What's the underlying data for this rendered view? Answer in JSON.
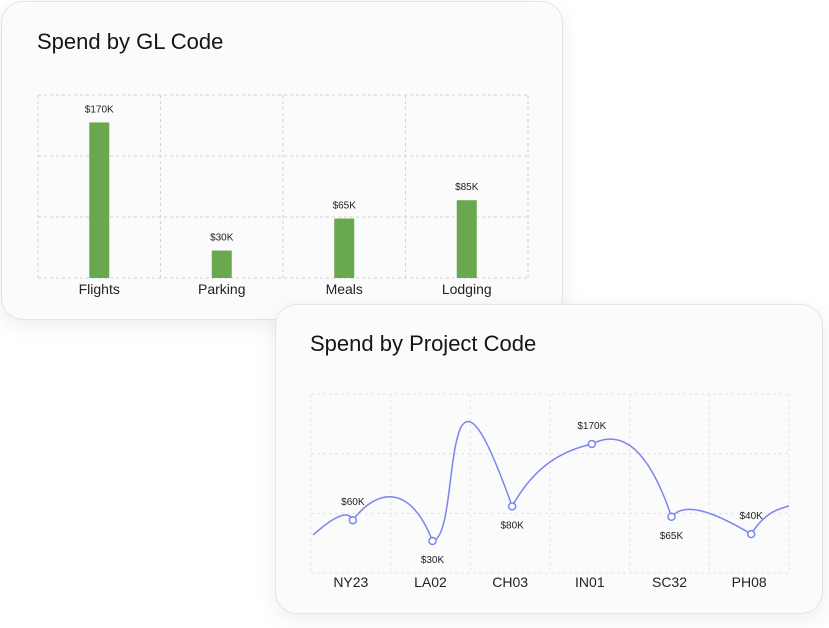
{
  "chart_data": [
    {
      "type": "bar",
      "title": "Spend by GL Code",
      "categories": [
        "Flights",
        "Parking",
        "Meals",
        "Lodging"
      ],
      "values": [
        170,
        30,
        65,
        85
      ],
      "data_labels": [
        "$170K",
        "$30K",
        "$65K",
        "$85K"
      ],
      "ylim": [
        0,
        200
      ],
      "grid": true,
      "bar_color": "#6aa84f"
    },
    {
      "type": "line",
      "title": "Spend by Project Code",
      "points": [
        {
          "x": "NY23",
          "y": 60,
          "label": "$60K"
        },
        {
          "x": "LA02",
          "y": 30,
          "label": "$30K"
        },
        {
          "x": "CH03",
          "y": 80,
          "label": "$80K"
        },
        {
          "x": "IN01",
          "y": 170,
          "label": "$170K"
        },
        {
          "x": "SC32",
          "y": 65,
          "label": "$65K"
        },
        {
          "x": "PH08",
          "y": 40,
          "label": "$40K"
        }
      ],
      "grid": true,
      "line_color": "#7b84ee",
      "marker_fill": "#ffffff"
    }
  ]
}
